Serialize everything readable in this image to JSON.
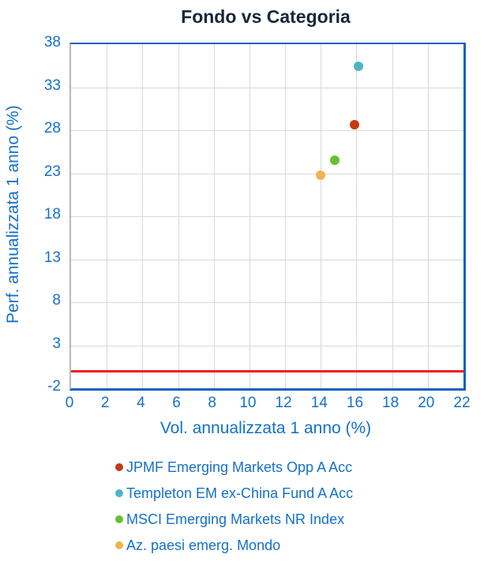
{
  "chart_data": {
    "type": "scatter",
    "title": "Fondo vs Categoria",
    "xlabel": "Vol. annualizzata 1 anno (%)",
    "ylabel": "Perf. annualizzata 1 anno (%)",
    "xlim": [
      0,
      22
    ],
    "ylim": [
      -2,
      38
    ],
    "x_ticks": [
      0,
      2,
      4,
      6,
      8,
      10,
      12,
      14,
      16,
      18,
      20,
      22
    ],
    "y_ticks": [
      38,
      33,
      28,
      23,
      18,
      13,
      8,
      3,
      -2
    ],
    "grid": true,
    "legend_position": "bottom",
    "series": [
      {
        "name": "JPMF Emerging Markets Opp A Acc",
        "color": "#c43b0f",
        "points": [
          {
            "x": 15.9,
            "y": 28.6
          }
        ]
      },
      {
        "name": "Templeton EM ex-China Fund A Acc",
        "color": "#4db5c6",
        "points": [
          {
            "x": 16.1,
            "y": 35.4
          }
        ]
      },
      {
        "name": "MSCI Emerging Markets NR Index",
        "color": "#68c02b",
        "points": [
          {
            "x": 14.8,
            "y": 24.5
          }
        ]
      },
      {
        "name": "Az. paesi emerg. Mondo",
        "color": "#efb44d",
        "points": [
          {
            "x": 14.0,
            "y": 22.8
          }
        ]
      }
    ],
    "reference_line": {
      "y": 0,
      "color": "#ee1c23"
    }
  },
  "colors": {
    "title_text": "#16283a",
    "axis_text": "#1470c8",
    "plot_border": "#0a62c2",
    "left_axis_line": "#b3b9bc",
    "gridline": "#d9d9d9",
    "reference_line": "#ee1c23"
  }
}
